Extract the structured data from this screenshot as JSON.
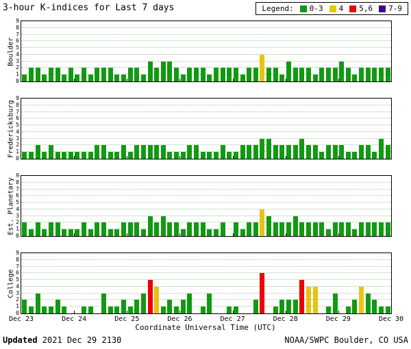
{
  "title": "3-hour K-indices for Last 7 days",
  "legend": {
    "label": "Legend:",
    "items": [
      {
        "label": "0-3",
        "color": "#119a11"
      },
      {
        "label": "4",
        "color": "#e6c414"
      },
      {
        "label": "5,6",
        "color": "#ee0000"
      },
      {
        "label": "7-9",
        "color": "#440088"
      }
    ]
  },
  "xlabel": "Coordinate Universal Time (UTC)",
  "footer": {
    "updated_label": "Updated",
    "updated_value": " 2021 Dec 29 2130",
    "credit": "NOAA/SWPC Boulder, CO USA"
  },
  "chart_data": {
    "type": "bar",
    "title": "3-hour K-indices for Last 7 days",
    "ylim": [
      0,
      9
    ],
    "y_ticks": [
      0,
      1,
      2,
      3,
      4,
      5,
      6,
      7,
      8,
      9
    ],
    "bins_per_day": 8,
    "x_tick_labels": [
      "Dec 23",
      "Dec 24",
      "Dec 25",
      "Dec 26",
      "Dec 27",
      "Dec 28",
      "Dec 29",
      "Dec 30"
    ],
    "color_rule": {
      "0-3": "green",
      "4": "yellow",
      "5-6": "red",
      "7-9": "purple"
    },
    "grid": "horizontal-dotted",
    "legend_position": "top-right",
    "series": [
      {
        "name": "Boulder",
        "values": [
          1,
          2,
          2,
          1,
          2,
          2,
          1,
          2,
          1,
          2,
          1,
          2,
          2,
          2,
          1,
          1,
          2,
          2,
          1,
          3,
          2,
          3,
          3,
          2,
          1,
          2,
          2,
          2,
          1,
          2,
          2,
          2,
          2,
          1,
          2,
          2,
          4,
          2,
          2,
          1,
          3,
          2,
          2,
          2,
          1,
          2,
          2,
          2,
          3,
          2,
          1,
          2,
          2,
          2,
          2,
          2
        ]
      },
      {
        "name": "Fredericksburg",
        "values": [
          1,
          1,
          2,
          1,
          2,
          1,
          1,
          1,
          1,
          1,
          1,
          2,
          2,
          1,
          1,
          2,
          1,
          2,
          2,
          2,
          2,
          2,
          1,
          1,
          1,
          2,
          2,
          1,
          1,
          1,
          2,
          1,
          1,
          2,
          2,
          2,
          3,
          3,
          2,
          2,
          2,
          2,
          3,
          2,
          2,
          1,
          2,
          2,
          2,
          1,
          1,
          2,
          2,
          1,
          3,
          2
        ]
      },
      {
        "name": "Est. Planetary",
        "values": [
          2,
          1,
          2,
          1,
          2,
          2,
          1,
          1,
          1,
          2,
          1,
          2,
          2,
          1,
          1,
          2,
          2,
          2,
          1,
          3,
          2,
          3,
          2,
          2,
          1,
          2,
          2,
          2,
          1,
          1,
          2,
          0,
          2,
          1,
          2,
          2,
          4,
          3,
          2,
          2,
          2,
          3,
          2,
          2,
          2,
          2,
          1,
          2,
          2,
          2,
          1,
          2,
          2,
          2,
          2,
          2
        ]
      },
      {
        "name": "College",
        "values": [
          2,
          1,
          3,
          1,
          1,
          2,
          1,
          0,
          0,
          1,
          1,
          0,
          3,
          1,
          1,
          2,
          1,
          2,
          3,
          5,
          4,
          1,
          2,
          1,
          2,
          3,
          0,
          1,
          3,
          0,
          0,
          1,
          1,
          0,
          0,
          2,
          6,
          0,
          1,
          2,
          2,
          2,
          5,
          4,
          4,
          0,
          1,
          3,
          0,
          1,
          2,
          4,
          3,
          2,
          1,
          1
        ]
      }
    ]
  }
}
